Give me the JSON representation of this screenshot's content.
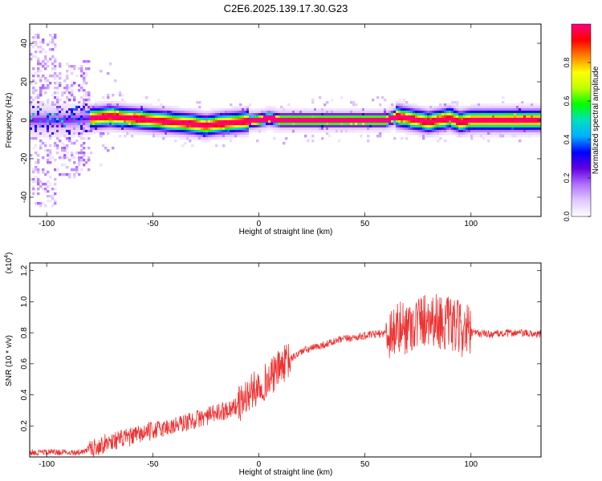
{
  "title": "C2E6.2025.139.17.30.G23",
  "chart_data": [
    {
      "type": "heatmap",
      "xlabel": "Height of straight line (km)",
      "ylabel": "Frequency (Hz)",
      "xlim": [
        -108,
        133
      ],
      "ylim": [
        -50,
        50
      ],
      "x_ticks": [
        -100,
        -50,
        0,
        50,
        100
      ],
      "y_ticks": [
        -40,
        -20,
        0,
        20,
        40
      ],
      "colorbar": {
        "label": "Normalized spectral amplitude",
        "range": [
          0,
          1
        ],
        "ticks": [
          0.0,
          0.2,
          0.4,
          0.6,
          0.8
        ],
        "colors": [
          "#ffffff",
          "#e0c8ff",
          "#b070ff",
          "#6000e0",
          "#0000ff",
          "#00b0ff",
          "#00e0c0",
          "#00ff00",
          "#c0ff00",
          "#ffff00",
          "#ff8000",
          "#ff0000",
          "#ff0080"
        ]
      },
      "ridge": {
        "description_points_x": [
          -90,
          -80,
          -70,
          -60,
          -50,
          -40,
          -30,
          -25,
          -20,
          -10,
          0,
          5,
          10,
          20,
          40,
          60,
          65,
          70,
          75,
          80,
          85,
          90,
          95,
          100,
          110,
          120,
          133
        ],
        "description_points_y": [
          0,
          1,
          2,
          1,
          0,
          -1,
          -2,
          -3,
          -2,
          -1,
          0,
          1,
          0,
          0,
          0,
          0,
          2,
          1,
          0,
          -1,
          0,
          1,
          -1,
          0,
          0,
          0,
          0
        ]
      }
    },
    {
      "type": "line",
      "xlabel": "Height of straight line (km)",
      "ylabel": "SNR (10 * v/v)",
      "y_multiplier": "(x10^4)",
      "xlim": [
        -108,
        133
      ],
      "ylim": [
        0,
        1.25
      ],
      "x_ticks": [
        -100,
        -50,
        0,
        50,
        100
      ],
      "y_ticks": [
        0.2,
        0.4,
        0.6,
        0.8,
        1.0,
        1.2
      ],
      "color": "#ee3333",
      "series": [
        {
          "x": [
            -108,
            -90,
            -80,
            -70,
            -60,
            -50,
            -40,
            -30,
            -20,
            -10,
            -5,
            0,
            5,
            10,
            15,
            20,
            30,
            40,
            50,
            60,
            70,
            80,
            90,
            100,
            110,
            120,
            133
          ],
          "values": [
            0.02,
            0.03,
            0.05,
            0.1,
            0.13,
            0.17,
            0.2,
            0.24,
            0.28,
            0.33,
            0.4,
            0.46,
            0.5,
            0.58,
            0.63,
            0.68,
            0.72,
            0.76,
            0.78,
            0.8,
            0.84,
            0.9,
            0.85,
            0.8,
            0.79,
            0.8,
            0.79
          ]
        }
      ]
    }
  ]
}
